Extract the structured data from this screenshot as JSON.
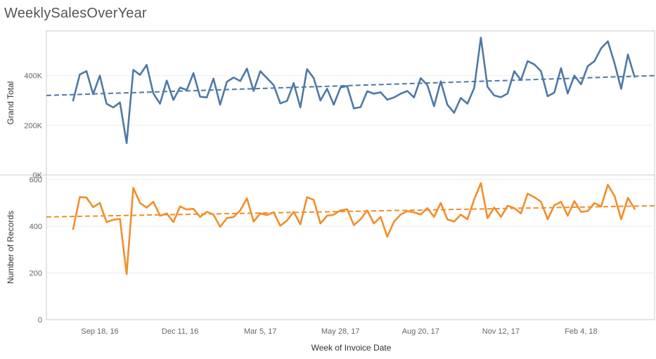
{
  "page": {
    "title": "WeeklySalesOverYear"
  },
  "colors": {
    "grand_total": "#4e79a7",
    "records": "#f28e2b",
    "frame": "#c8c8c8",
    "gridline": "#eeeeee"
  },
  "chart_data": {
    "type": "line",
    "title": "WeeklySalesOverYear",
    "xlabel": "Week of Invoice Date",
    "x_tick_labels": [
      "Sep 18, 16",
      "Dec 11, 16",
      "Mar 5, 17",
      "May 28, 17",
      "Aug 20, 17",
      "Nov 12, 17",
      "Feb 4, 18"
    ],
    "x_ticks": [
      "2016-09-18",
      "2016-12-11",
      "2017-03-05",
      "2017-05-28",
      "2017-08-20",
      "2017-11-12",
      "2018-02-04"
    ],
    "x_range": [
      "2016-07-24",
      "2018-04-22"
    ],
    "x_start": "2016-08-21",
    "x_step_days": 7,
    "trend_lines": true,
    "grid": true,
    "panes": [
      {
        "series_name": "Grand Total",
        "ylabel": "Grand Total",
        "ylim": [
          0,
          580000
        ],
        "y_ticks": [
          0,
          200000,
          400000
        ],
        "y_tick_labels": [
          "0K",
          "200K",
          "400K"
        ],
        "values": [
          300000,
          405000,
          418000,
          325000,
          400000,
          287000,
          272000,
          292000,
          128000,
          423000,
          403000,
          443000,
          328000,
          287000,
          380000,
          302000,
          352000,
          342000,
          410000,
          315000,
          312000,
          388000,
          283000,
          375000,
          392000,
          378000,
          428000,
          338000,
          418000,
          390000,
          362000,
          288000,
          298000,
          370000,
          272000,
          426000,
          390000,
          300000,
          347000,
          283000,
          352000,
          358000,
          268000,
          273000,
          337000,
          327000,
          333000,
          303000,
          312000,
          327000,
          338000,
          312000,
          390000,
          362000,
          277000,
          377000,
          283000,
          250000,
          310000,
          287000,
          350000,
          553000,
          355000,
          320000,
          313000,
          328000,
          418000,
          382000,
          458000,
          445000,
          418000,
          317000,
          332000,
          430000,
          328000,
          400000,
          365000,
          438000,
          458000,
          510000,
          538000,
          450000,
          347000,
          485000,
          395000
        ],
        "trend": [
          320000,
          400000
        ]
      },
      {
        "series_name": "Number of Records",
        "ylabel": "Number of Records",
        "ylim": [
          0,
          620
        ],
        "y_ticks": [
          0,
          200,
          400,
          600
        ],
        "y_tick_labels": [
          "0",
          "200",
          "400",
          "600"
        ],
        "values": [
          388,
          525,
          523,
          482,
          500,
          418,
          428,
          432,
          195,
          565,
          500,
          480,
          505,
          445,
          455,
          418,
          485,
          472,
          475,
          440,
          462,
          450,
          398,
          435,
          440,
          468,
          520,
          420,
          455,
          448,
          460,
          402,
          425,
          462,
          408,
          525,
          513,
          412,
          445,
          450,
          468,
          473,
          405,
          430,
          468,
          412,
          440,
          355,
          420,
          450,
          465,
          460,
          450,
          478,
          440,
          500,
          430,
          420,
          450,
          430,
          515,
          585,
          435,
          480,
          440,
          488,
          478,
          455,
          540,
          525,
          505,
          430,
          490,
          505,
          445,
          508,
          462,
          465,
          500,
          485,
          578,
          530,
          430,
          522,
          475
        ],
        "trend": [
          440,
          488
        ]
      }
    ]
  }
}
